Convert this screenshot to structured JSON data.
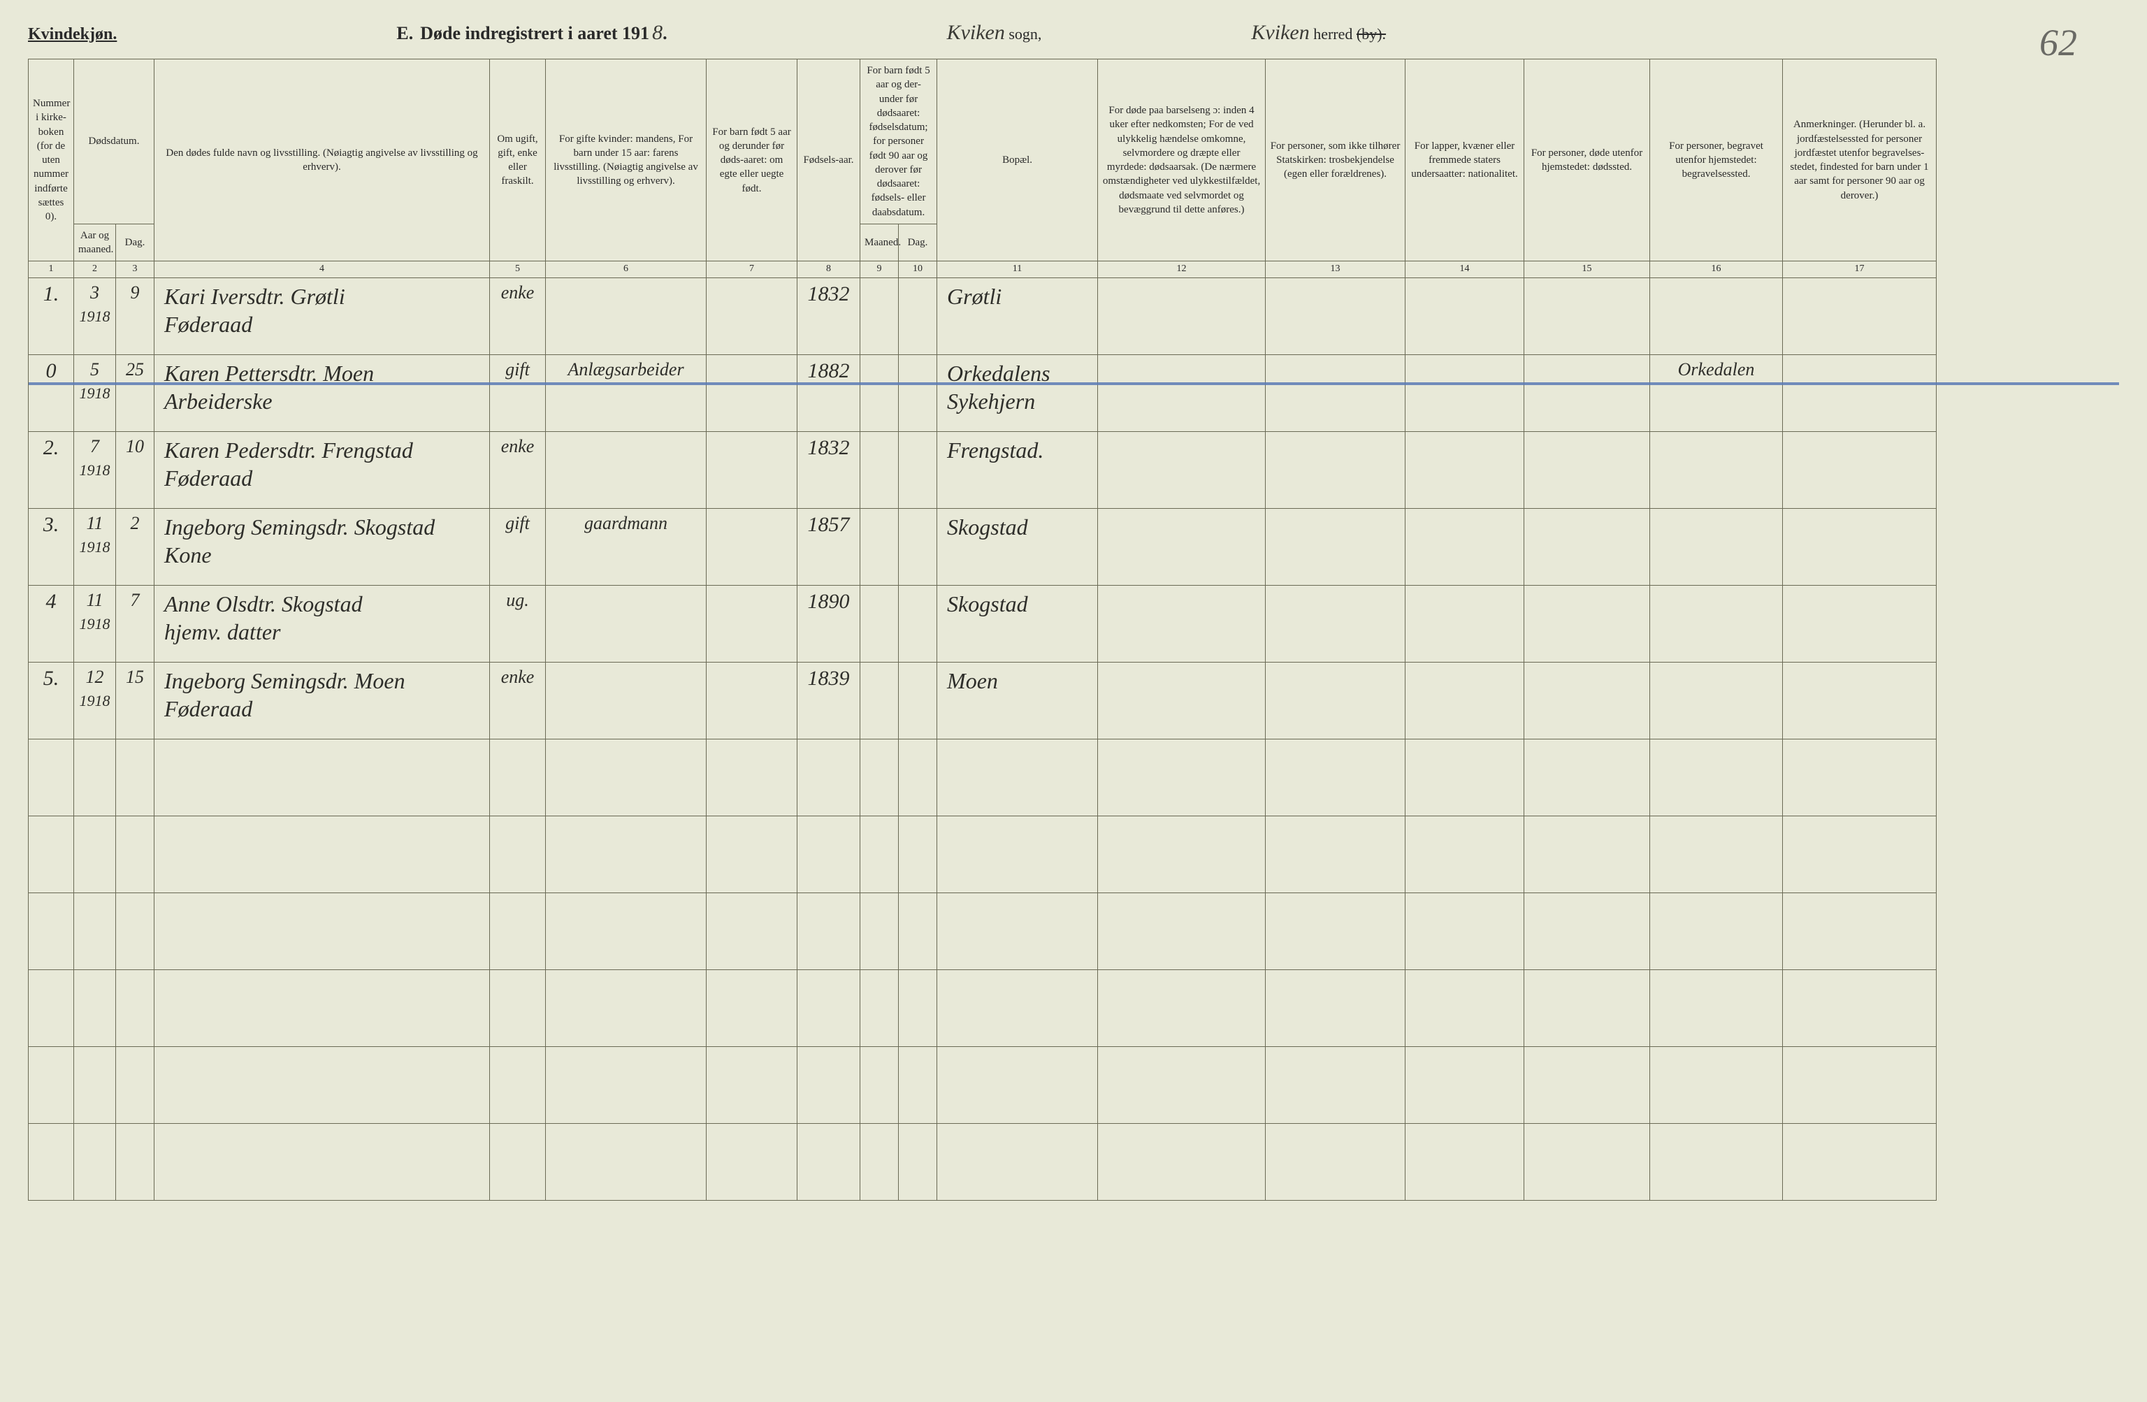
{
  "colors": {
    "paper": "#e8e9d8",
    "ink": "#2a2a2a",
    "rule": "#6a6a55",
    "pencil": "#6a6a65",
    "strike_blue": "#5a7ab5"
  },
  "fonts": {
    "print": "Georgia, 'Times New Roman', serif",
    "hand": "'Brush Script MT', cursive",
    "header_size_pt": 20,
    "cell_hand_size_pt": 24,
    "colhead_size_pt": 11
  },
  "header": {
    "gender_label": "Kvindekjøn.",
    "section_letter": "E.",
    "title_prefix": "Døde indregistrert i aaret 191",
    "year_last_digit": "8",
    "title_suffix": ".",
    "sogn_hand": "Kviken",
    "sogn_label": "sogn,",
    "herred_hand": "Kviken",
    "herred_label": "herred",
    "herred_strike": "(by).",
    "page_number": "62"
  },
  "columns": {
    "h1": "Nummer i kirke-boken (for de uten nummer indførte sættes 0).",
    "h2_group": "Dødsdatum.",
    "h2": "Aar og maaned.",
    "h3": "Dag.",
    "h4": "Den dødes fulde navn og livsstilling.\n(Nøiagtig angivelse av livsstilling og erhverv).",
    "h5": "Om ugift, gift, enke eller fraskilt.",
    "h6": "For gifte kvinder: mandens,\nFor barn under 15 aar: farens livsstilling.\n(Nøiagtig angivelse av livsstilling og erhverv).",
    "h7": "For barn født 5 aar og derunder før døds-aaret: om egte eller uegte født.",
    "h8": "Fødsels-aar.",
    "h9_group": "For barn født 5 aar og der-under før dødsaaret: fødselsdatum; for personer født 90 aar og derover før dødsaaret: fødsels- eller daabsdatum.",
    "h9": "Maaned.",
    "h10": "Dag.",
    "h11": "Bopæl.",
    "h12": "For døde paa barselseng ɔ: inden 4 uker efter nedkomsten;\nFor de ved ulykkelig hændelse omkomne, selvmordere og dræpte eller myrdede: dødsaarsak.\n(De nærmere omstændigheter ved ulykkestilfældet, dødsmaate ved selvmordet og bevæggrund til dette anføres.)",
    "h13": "For personer, som ikke tilhører Statskirken: trosbekjendelse (egen eller forældrenes).",
    "h14": "For lapper, kvæner eller fremmede staters undersaatter: nationalitet.",
    "h15": "For personer, døde utenfor hjemstedet: dødssted.",
    "h16": "For personer, begravet utenfor hjemstedet: begravelsessted.",
    "h17": "Anmerkninger.\n(Herunder bl. a. jordfæstelsessted for personer jordfæstet utenfor begravelses-stedet, findested for barn under 1 aar samt for personer 90 aar og derover.)",
    "nums": [
      "1",
      "2",
      "3",
      "4",
      "5",
      "6",
      "7",
      "8",
      "9",
      "10",
      "11",
      "12",
      "13",
      "14",
      "15",
      "16",
      "17"
    ]
  },
  "rows": [
    {
      "num": "1.",
      "aar_m": "3",
      "aar_y": "1918",
      "dag": "9",
      "name": "Kari Iversdtr. Grøtli\nFøderaad",
      "civil": "enke",
      "col6": "",
      "col7": "",
      "faar": "1832",
      "m9": "",
      "d10": "",
      "bopael": "Grøtli",
      "c12": "",
      "c13": "",
      "c14": "",
      "c15": "",
      "c16": "",
      "c17": "",
      "struck": false
    },
    {
      "num": "0",
      "aar_m": "5",
      "aar_y": "1918",
      "dag": "25",
      "name": "Karen Pettersdtr. Moen\nArbeiderske",
      "civil": "gift",
      "col6": "Anlægsarbeider",
      "col7": "",
      "faar": "1882",
      "m9": "",
      "d10": "",
      "bopael": "Orkedalens\nSykehjern",
      "c12": "",
      "c13": "",
      "c14": "",
      "c15": "",
      "c16": "Orkedalen",
      "c17": "",
      "struck": true
    },
    {
      "num": "2.",
      "aar_m": "7",
      "aar_y": "1918",
      "dag": "10",
      "name": "Karen Pedersdtr. Frengstad\nFøderaad",
      "civil": "enke",
      "col6": "",
      "col7": "",
      "faar": "1832",
      "m9": "",
      "d10": "",
      "bopael": "Frengstad.",
      "c12": "",
      "c13": "",
      "c14": "",
      "c15": "",
      "c16": "",
      "c17": "",
      "struck": false
    },
    {
      "num": "3.",
      "aar_m": "11",
      "aar_y": "1918",
      "dag": "2",
      "name": "Ingeborg Semingsdr. Skogstad\nKone",
      "civil": "gift",
      "col6": "gaardmann",
      "col7": "",
      "faar": "1857",
      "m9": "",
      "d10": "",
      "bopael": "Skogstad",
      "c12": "",
      "c13": "",
      "c14": "",
      "c15": "",
      "c16": "",
      "c17": "",
      "struck": false
    },
    {
      "num": "4",
      "aar_m": "11",
      "aar_y": "1918",
      "dag": "7",
      "name": "Anne Olsdtr. Skogstad\nhjemv. datter",
      "civil": "ug.",
      "col6": "",
      "col7": "",
      "faar": "1890",
      "m9": "",
      "d10": "",
      "bopael": "Skogstad",
      "c12": "",
      "c13": "",
      "c14": "",
      "c15": "",
      "c16": "",
      "c17": "",
      "struck": false
    },
    {
      "num": "5.",
      "aar_m": "12",
      "aar_y": "1918",
      "dag": "15",
      "name": "Ingeborg Semingsdr. Moen\nFøderaad",
      "civil": "enke",
      "col6": "",
      "col7": "",
      "faar": "1839",
      "m9": "",
      "d10": "",
      "bopael": "Moen",
      "c12": "",
      "c13": "",
      "c14": "",
      "c15": "",
      "c16": "",
      "c17": "",
      "struck": false
    }
  ],
  "empty_row_count": 6
}
